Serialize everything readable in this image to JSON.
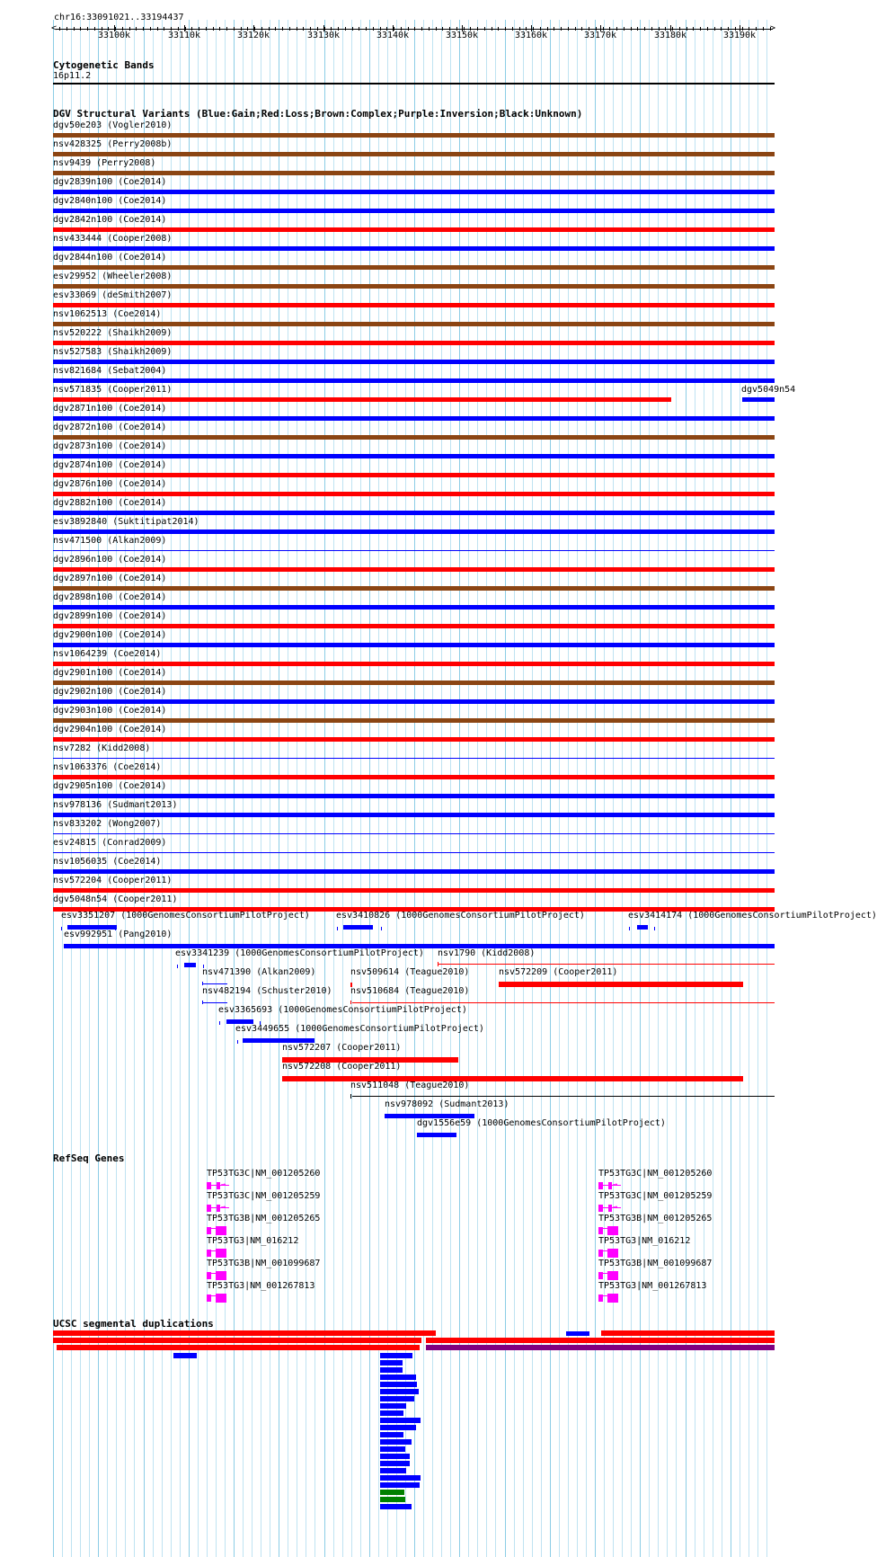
{
  "ruler": {
    "location": "chr16:33091021..33194437",
    "ticks": [
      "33100k",
      "33110k",
      "33120k",
      "33130k",
      "33140k",
      "33150k",
      "33160k",
      "33170k",
      "33180k",
      "33190k"
    ]
  },
  "cytoband": {
    "title": "Cytogenetic Bands",
    "band": "16p11.2"
  },
  "dgv": {
    "title": "DGV Structural Variants (Blue:Gain;Red:Loss;Brown:Complex;Purple:Inversion;Black:Unknown)",
    "colors": {
      "gain": "#0000ff",
      "loss": "#ff0000",
      "complex": "#8b4513",
      "unknown": "#000000",
      "inversion": "#800080"
    },
    "full_rows": [
      {
        "label": "dgv50e203 (Vogler2010)",
        "type": "complex"
      },
      {
        "label": "nsv428325 (Perry2008b)",
        "type": "complex"
      },
      {
        "label": "nsv9439 (Perry2008)",
        "type": "complex"
      },
      {
        "label": "dgv2839n100 (Coe2014)",
        "type": "gain"
      },
      {
        "label": "dgv2840n100 (Coe2014)",
        "type": "gain"
      },
      {
        "label": "dgv2842n100 (Coe2014)",
        "type": "loss"
      },
      {
        "label": "nsv433444 (Cooper2008)",
        "type": "gain"
      },
      {
        "label": "dgv2844n100 (Coe2014)",
        "type": "complex"
      },
      {
        "label": "esv29952 (Wheeler2008)",
        "type": "complex"
      },
      {
        "label": "esv33069 (deSmith2007)",
        "type": "loss"
      },
      {
        "label": "nsv1062513 (Coe2014)",
        "type": "complex"
      },
      {
        "label": "nsv520222 (Shaikh2009)",
        "type": "loss"
      },
      {
        "label": "nsv527583 (Shaikh2009)",
        "type": "gain"
      },
      {
        "label": "nsv821684 (Sebat2004)",
        "type": "gain"
      },
      {
        "label": "nsv571835 (Cooper2011)",
        "type": "loss-partial",
        "extra_label": "dgv5049n54"
      },
      {
        "label": "dgv2871n100 (Coe2014)",
        "type": "gain"
      },
      {
        "label": "dgv2872n100 (Coe2014)",
        "type": "complex"
      },
      {
        "label": "dgv2873n100 (Coe2014)",
        "type": "gain"
      },
      {
        "label": "dgv2874n100 (Coe2014)",
        "type": "loss"
      },
      {
        "label": "dgv2876n100 (Coe2014)",
        "type": "loss"
      },
      {
        "label": "dgv2882n100 (Coe2014)",
        "type": "gain"
      },
      {
        "label": "esv3892840 (Suktitipat2014)",
        "type": "gain"
      },
      {
        "label": "nsv471500 (Alkan2009)",
        "type": "gain-thin"
      },
      {
        "label": "dgv2896n100 (Coe2014)",
        "type": "loss"
      },
      {
        "label": "dgv2897n100 (Coe2014)",
        "type": "complex"
      },
      {
        "label": "dgv2898n100 (Coe2014)",
        "type": "gain"
      },
      {
        "label": "dgv2899n100 (Coe2014)",
        "type": "loss"
      },
      {
        "label": "dgv2900n100 (Coe2014)",
        "type": "gain"
      },
      {
        "label": "nsv1064239 (Coe2014)",
        "type": "loss"
      },
      {
        "label": "dgv2901n100 (Coe2014)",
        "type": "complex"
      },
      {
        "label": "dgv2902n100 (Coe2014)",
        "type": "gain"
      },
      {
        "label": "dgv2903n100 (Coe2014)",
        "type": "complex"
      },
      {
        "label": "dgv2904n100 (Coe2014)",
        "type": "loss"
      },
      {
        "label": "nsv7282 (Kidd2008)",
        "type": "gain-thin"
      },
      {
        "label": "nsv1063376 (Coe2014)",
        "type": "loss"
      },
      {
        "label": "dgv2905n100 (Coe2014)",
        "type": "gain"
      },
      {
        "label": "nsv978136 (Sudmant2013)",
        "type": "gain"
      },
      {
        "label": "nsv833202 (Wong2007)",
        "type": "gain-thin"
      },
      {
        "label": "esv24815 (Conrad2009)",
        "type": "gain-thin"
      },
      {
        "label": "nsv1056035 (Coe2014)",
        "type": "gain"
      },
      {
        "label": "nsv572204 (Cooper2011)",
        "type": "loss"
      },
      {
        "label": "dgv5048n54 (Cooper2011)",
        "type": "loss"
      }
    ],
    "lower_labels": {
      "esv3351207": "esv3351207 (1000GenomesConsortiumPilotProject)",
      "esv3410826": "esv3410826 (1000GenomesConsortiumPilotProject)",
      "esv3414174": "esv3414174 (1000GenomesConsortiumPilotProject)",
      "esv992951": "esv992951 (Pang2010)",
      "esv3341239": "esv3341239 (1000GenomesConsortiumPilotProject)",
      "nsv1790": "nsv1790 (Kidd2008)",
      "nsv471390": "nsv471390 (Alkan2009)",
      "nsv509614": "nsv509614 (Teague2010)",
      "nsv572209": "nsv572209 (Cooper2011)",
      "nsv482194": "nsv482194 (Schuster2010)",
      "nsv510684": "nsv510684 (Teague2010)",
      "esv3365693": "esv3365693 (1000GenomesConsortiumPilotProject)",
      "esv3449655": "esv3449655 (1000GenomesConsortiumPilotProject)",
      "nsv572207": "nsv572207 (Cooper2011)",
      "nsv572208": "nsv572208 (Cooper2011)",
      "nsv511048": "nsv511048 (Teague2010)",
      "nsv978092": "nsv978092 (Sudmant2013)",
      "dgv1556e59": "dgv1556e59 (1000GenomesConsortiumPilotProject)"
    }
  },
  "refseq": {
    "title": "RefSeq Genes",
    "genes": [
      "TP53TG3C|NM_001205260",
      "TP53TG3C|NM_001205259",
      "TP53TG3B|NM_001205265",
      "TP53TG3|NM_016212",
      "TP53TG3B|NM_001099687",
      "TP53TG3|NM_001267813"
    ]
  },
  "segdup": {
    "title": "UCSC segmental duplications",
    "colors": {
      "red": "#ff0000",
      "blue": "#0000ff",
      "purple": "#800080",
      "green": "#008000"
    }
  }
}
